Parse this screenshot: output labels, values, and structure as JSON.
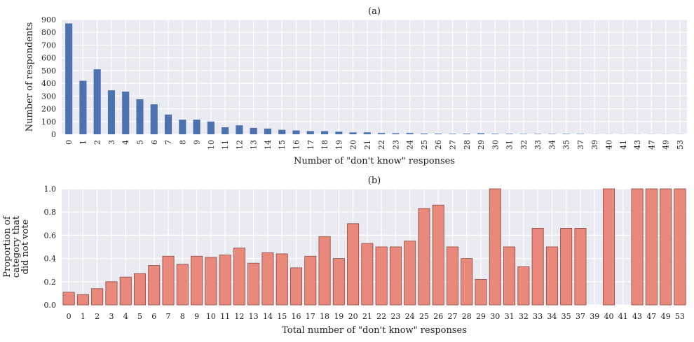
{
  "chart_data": [
    {
      "type": "bar",
      "title": "(a)",
      "xlabel": "Number of \"don't know\" responses",
      "ylabel": "Number of respondents",
      "ylim": [
        0,
        900
      ],
      "yticks": [
        "0",
        "100",
        "200",
        "300",
        "400",
        "500",
        "600",
        "700",
        "800",
        "900"
      ],
      "grid": true,
      "categories": [
        "0",
        "1",
        "2",
        "3",
        "4",
        "5",
        "6",
        "7",
        "8",
        "9",
        "10",
        "11",
        "12",
        "13",
        "14",
        "15",
        "16",
        "17",
        "18",
        "19",
        "20",
        "21",
        "22",
        "23",
        "24",
        "25",
        "26",
        "27",
        "28",
        "29",
        "30",
        "31",
        "32",
        "33",
        "34",
        "35",
        "37",
        "39",
        "40",
        "41",
        "43",
        "47",
        "49",
        "53"
      ],
      "values": [
        870,
        420,
        510,
        345,
        335,
        275,
        235,
        155,
        115,
        115,
        100,
        55,
        70,
        50,
        45,
        35,
        30,
        25,
        25,
        20,
        15,
        15,
        10,
        8,
        10,
        6,
        5,
        4,
        5,
        8,
        4,
        4,
        3,
        3,
        3,
        3,
        3,
        1,
        1,
        1,
        1,
        1,
        1,
        1
      ],
      "color": "#4c72b0"
    },
    {
      "type": "bar",
      "title": "(b)",
      "xlabel": "Total number of \"don't know\" responses",
      "ylabel": [
        "Proportion of",
        "category that",
        "did not vote"
      ],
      "ylim": [
        0,
        1.0
      ],
      "yticks": [
        "0.0",
        "0.2",
        "0.4",
        "0.6",
        "0.8",
        "1.0"
      ],
      "grid": true,
      "categories": [
        "0",
        "1",
        "2",
        "3",
        "4",
        "5",
        "6",
        "7",
        "8",
        "9",
        "10",
        "11",
        "12",
        "13",
        "14",
        "15",
        "16",
        "17",
        "18",
        "19",
        "20",
        "21",
        "22",
        "23",
        "24",
        "25",
        "26",
        "27",
        "28",
        "29",
        "30",
        "31",
        "32",
        "33",
        "34",
        "35",
        "37",
        "39",
        "40",
        "41",
        "43",
        "47",
        "49",
        "53"
      ],
      "values": [
        0.11,
        0.09,
        0.14,
        0.2,
        0.24,
        0.27,
        0.34,
        0.42,
        0.35,
        0.42,
        0.41,
        0.43,
        0.49,
        0.36,
        0.45,
        0.44,
        0.32,
        0.42,
        0.59,
        0.4,
        0.7,
        0.53,
        0.5,
        0.5,
        0.55,
        0.83,
        0.86,
        0.5,
        0.4,
        0.22,
        1.0,
        0.5,
        0.33,
        0.66,
        0.5,
        0.66,
        0.66,
        0.0,
        1.0,
        0.0,
        1.0,
        1.0,
        1.0,
        1.0
      ],
      "color": "#e8897c"
    }
  ]
}
